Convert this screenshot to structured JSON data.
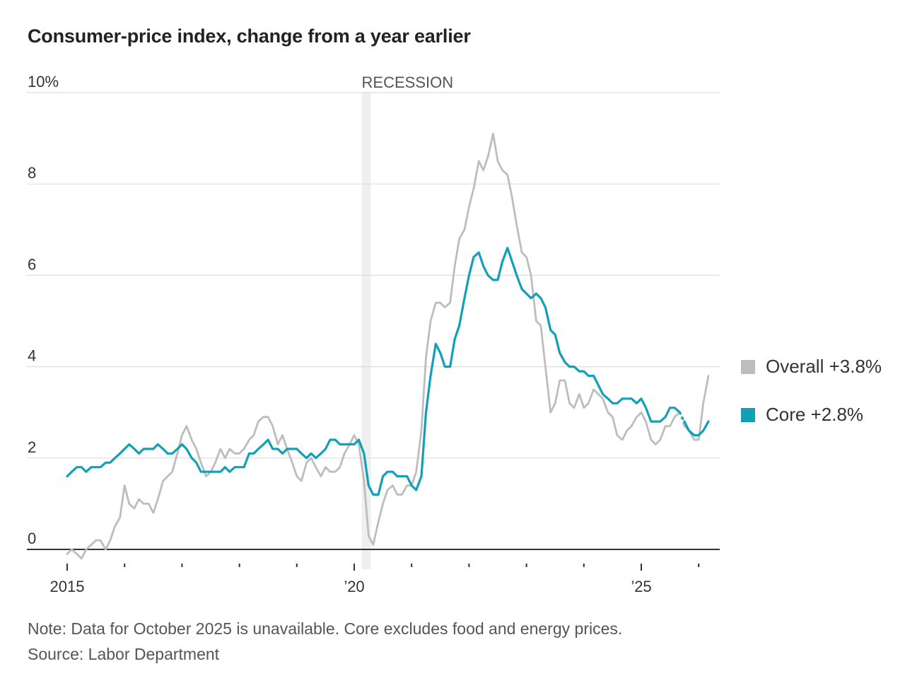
{
  "title": "Consumer-price index, change from a year earlier",
  "note": "Note: Data for October 2025 is unavailable. Core excludes food and energy prices.",
  "source": "Source: Labor Department",
  "chart_data": {
    "type": "line",
    "title": "Consumer-price index, change from a year earlier",
    "y_tick_labels": [
      "0",
      "2",
      "4",
      "6",
      "8",
      "10%"
    ],
    "y_ticks": [
      0,
      2,
      4,
      6,
      8,
      10
    ],
    "ylim": [
      -0.3,
      10
    ],
    "x_tick_labels": [
      "2015",
      "’20",
      "’25"
    ],
    "x_ticks": [
      2015,
      2020,
      2025
    ],
    "xlim": [
      2014.8,
      2026.4
    ],
    "minor_x_ticks": [
      2016,
      2017,
      2018,
      2019,
      2021,
      2022,
      2023,
      2024,
      2026
    ],
    "grid": "horizontal",
    "annotation": {
      "label": "RECESSION",
      "x_start": 2020.13,
      "x_end": 2020.29
    },
    "legend_placement": "right",
    "colors": {
      "overall": "#bdbdbd",
      "core": "#11a0b8",
      "recession": "#efefef",
      "grid": "#dddddd",
      "axis": "#333333"
    },
    "series": [
      {
        "name": "Overall",
        "legend_label": "Overall +3.8%",
        "segments": [
          {
            "x": [
              2015.0,
              2015.08,
              2015.17,
              2015.25,
              2015.33,
              2015.42,
              2015.5,
              2015.58,
              2015.67,
              2015.75,
              2015.83,
              2015.92,
              2016.0,
              2016.08,
              2016.17,
              2016.25,
              2016.33,
              2016.42,
              2016.5,
              2016.58,
              2016.67,
              2016.75,
              2016.83,
              2016.92,
              2017.0,
              2017.08,
              2017.17,
              2017.25,
              2017.33,
              2017.42,
              2017.5,
              2017.58,
              2017.67,
              2017.75,
              2017.83,
              2017.92,
              2018.0,
              2018.08,
              2018.17,
              2018.25,
              2018.33,
              2018.42,
              2018.5,
              2018.58,
              2018.67,
              2018.75,
              2018.83,
              2018.92,
              2019.0,
              2019.08,
              2019.17,
              2019.25,
              2019.33,
              2019.42,
              2019.5,
              2019.58,
              2019.67,
              2019.75,
              2019.83,
              2019.92,
              2020.0,
              2020.08,
              2020.17,
              2020.25,
              2020.33,
              2020.42,
              2020.5,
              2020.58,
              2020.67,
              2020.75,
              2020.83,
              2020.92,
              2021.0,
              2021.08,
              2021.17,
              2021.25,
              2021.33,
              2021.42,
              2021.5,
              2021.58,
              2021.67,
              2021.75,
              2021.83,
              2021.92,
              2022.0,
              2022.08,
              2022.17,
              2022.25,
              2022.33,
              2022.42,
              2022.5,
              2022.58,
              2022.67,
              2022.75,
              2022.83,
              2022.92,
              2023.0,
              2023.08,
              2023.17,
              2023.25,
              2023.33,
              2023.42,
              2023.5,
              2023.58,
              2023.67,
              2023.75,
              2023.83,
              2023.92,
              2024.0,
              2024.08,
              2024.17,
              2024.25,
              2024.33,
              2024.42,
              2024.5,
              2024.58,
              2024.67,
              2024.75,
              2024.83,
              2024.92,
              2025.0,
              2025.08,
              2025.17,
              2025.25,
              2025.33,
              2025.42,
              2025.5,
              2025.58,
              2025.67
            ],
            "y": [
              -0.1,
              0.0,
              -0.1,
              -0.2,
              0.0,
              0.1,
              0.2,
              0.2,
              0.0,
              0.2,
              0.5,
              0.7,
              1.4,
              1.0,
              0.9,
              1.1,
              1.0,
              1.0,
              0.8,
              1.1,
              1.5,
              1.6,
              1.7,
              2.1,
              2.5,
              2.7,
              2.4,
              2.2,
              1.9,
              1.6,
              1.7,
              1.9,
              2.2,
              2.0,
              2.2,
              2.1,
              2.1,
              2.2,
              2.4,
              2.5,
              2.8,
              2.9,
              2.9,
              2.7,
              2.3,
              2.5,
              2.2,
              1.9,
              1.6,
              1.5,
              1.9,
              2.0,
              1.8,
              1.6,
              1.8,
              1.7,
              1.7,
              1.8,
              2.1,
              2.3,
              2.5,
              2.3,
              1.5,
              0.3,
              0.1,
              0.6,
              1.0,
              1.3,
              1.4,
              1.2,
              1.2,
              1.4,
              1.4,
              1.7,
              2.6,
              4.2,
              5.0,
              5.4,
              5.4,
              5.3,
              5.4,
              6.2,
              6.8,
              7.0,
              7.5,
              7.9,
              8.5,
              8.3,
              8.6,
              9.1,
              8.5,
              8.3,
              8.2,
              7.7,
              7.1,
              6.5,
              6.4,
              6.0,
              5.0,
              4.9,
              4.0,
              3.0,
              3.2,
              3.7,
              3.7,
              3.2,
              3.1,
              3.4,
              3.1,
              3.2,
              3.5,
              3.4,
              3.3,
              3.0,
              2.9,
              2.5,
              2.4,
              2.6,
              2.7,
              2.9,
              3.0,
              2.8,
              2.4,
              2.3,
              2.4,
              2.7,
              2.7,
              2.9,
              3.0
            ]
          },
          {
            "x": [
              2025.75,
              2025.83,
              2025.92,
              2026.0,
              2026.08,
              2026.17
            ],
            "y": [
              2.7,
              2.6,
              2.4,
              2.4,
              3.2,
              3.8
            ]
          }
        ]
      },
      {
        "name": "Core",
        "legend_label": "Core +2.8%",
        "segments": [
          {
            "x": [
              2015.0,
              2015.08,
              2015.17,
              2015.25,
              2015.33,
              2015.42,
              2015.5,
              2015.58,
              2015.67,
              2015.75,
              2015.83,
              2015.92,
              2016.0,
              2016.08,
              2016.17,
              2016.25,
              2016.33,
              2016.42,
              2016.5,
              2016.58,
              2016.67,
              2016.75,
              2016.83,
              2016.92,
              2017.0,
              2017.08,
              2017.17,
              2017.25,
              2017.33,
              2017.42,
              2017.5,
              2017.58,
              2017.67,
              2017.75,
              2017.83,
              2017.92,
              2018.0,
              2018.08,
              2018.17,
              2018.25,
              2018.33,
              2018.42,
              2018.5,
              2018.58,
              2018.67,
              2018.75,
              2018.83,
              2018.92,
              2019.0,
              2019.08,
              2019.17,
              2019.25,
              2019.33,
              2019.42,
              2019.5,
              2019.58,
              2019.67,
              2019.75,
              2019.83,
              2019.92,
              2020.0,
              2020.08,
              2020.17,
              2020.25,
              2020.33,
              2020.42,
              2020.5,
              2020.58,
              2020.67,
              2020.75,
              2020.83,
              2020.92,
              2021.0,
              2021.08,
              2021.17,
              2021.25,
              2021.33,
              2021.42,
              2021.5,
              2021.58,
              2021.67,
              2021.75,
              2021.83,
              2021.92,
              2022.0,
              2022.08,
              2022.17,
              2022.25,
              2022.33,
              2022.42,
              2022.5,
              2022.58,
              2022.67,
              2022.75,
              2022.83,
              2022.92,
              2023.0,
              2023.08,
              2023.17,
              2023.25,
              2023.33,
              2023.42,
              2023.5,
              2023.58,
              2023.67,
              2023.75,
              2023.83,
              2023.92,
              2024.0,
              2024.08,
              2024.17,
              2024.25,
              2024.33,
              2024.42,
              2024.5,
              2024.58,
              2024.67,
              2024.75,
              2024.83,
              2024.92,
              2025.0,
              2025.08,
              2025.17,
              2025.25,
              2025.33,
              2025.42,
              2025.5,
              2025.58,
              2025.67
            ],
            "y": [
              1.6,
              1.7,
              1.8,
              1.8,
              1.7,
              1.8,
              1.8,
              1.8,
              1.9,
              1.9,
              2.0,
              2.1,
              2.2,
              2.3,
              2.2,
              2.1,
              2.2,
              2.2,
              2.2,
              2.3,
              2.2,
              2.1,
              2.1,
              2.2,
              2.3,
              2.2,
              2.0,
              1.9,
              1.7,
              1.7,
              1.7,
              1.7,
              1.7,
              1.8,
              1.7,
              1.8,
              1.8,
              1.8,
              2.1,
              2.1,
              2.2,
              2.3,
              2.4,
              2.2,
              2.2,
              2.1,
              2.2,
              2.2,
              2.2,
              2.1,
              2.0,
              2.1,
              2.0,
              2.1,
              2.2,
              2.4,
              2.4,
              2.3,
              2.3,
              2.3,
              2.3,
              2.4,
              2.1,
              1.4,
              1.2,
              1.2,
              1.6,
              1.7,
              1.7,
              1.6,
              1.6,
              1.6,
              1.4,
              1.3,
              1.6,
              3.0,
              3.8,
              4.5,
              4.3,
              4.0,
              4.0,
              4.6,
              4.9,
              5.5,
              6.0,
              6.4,
              6.5,
              6.2,
              6.0,
              5.9,
              5.9,
              6.3,
              6.6,
              6.3,
              6.0,
              5.7,
              5.6,
              5.5,
              5.6,
              5.5,
              5.3,
              4.8,
              4.7,
              4.3,
              4.1,
              4.0,
              4.0,
              3.9,
              3.9,
              3.8,
              3.8,
              3.6,
              3.4,
              3.3,
              3.2,
              3.2,
              3.3,
              3.3,
              3.3,
              3.2,
              3.3,
              3.1,
              2.8,
              2.8,
              2.8,
              2.9,
              3.1,
              3.1,
              3.0
            ]
          },
          {
            "x": [
              2025.75,
              2025.83,
              2025.92,
              2026.0,
              2026.08,
              2026.17
            ],
            "y": [
              2.8,
              2.6,
              2.5,
              2.5,
              2.6,
              2.8
            ]
          }
        ]
      }
    ]
  }
}
